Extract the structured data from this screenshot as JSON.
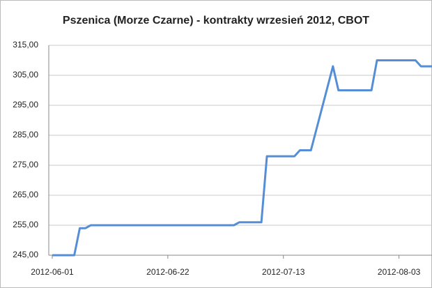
{
  "chart_data": {
    "type": "line",
    "title": "Pszenica (Morze Czarne) - kontrakty wrzesień 2012, CBOT",
    "x": [
      "2012-06-01",
      "2012-06-05",
      "2012-06-06",
      "2012-06-07",
      "2012-06-08",
      "2012-07-04",
      "2012-07-05",
      "2012-07-09",
      "2012-07-10",
      "2012-07-15",
      "2012-07-16",
      "2012-07-18",
      "2012-07-22",
      "2012-07-23",
      "2012-07-29",
      "2012-07-30",
      "2012-08-06",
      "2012-08-07",
      "2012-08-09"
    ],
    "values": [
      245,
      245,
      254,
      254,
      255,
      255,
      256,
      256,
      278,
      278,
      280,
      280,
      308,
      300,
      300,
      310,
      310,
      308,
      308
    ],
    "color": "#558ed5",
    "xlim": [
      "2012-06-01",
      "2012-08-09"
    ],
    "xticks": [
      "2012-06-01",
      "2012-06-22",
      "2012-07-13",
      "2012-08-03"
    ],
    "ylim": [
      245,
      315
    ],
    "yticks": [
      {
        "value": 245,
        "label": "245,00"
      },
      {
        "value": 255,
        "label": "255,00"
      },
      {
        "value": 265,
        "label": "265,00"
      },
      {
        "value": 275,
        "label": "275,00"
      },
      {
        "value": 285,
        "label": "285,00"
      },
      {
        "value": 295,
        "label": "295,00"
      },
      {
        "value": 305,
        "label": "305,00"
      },
      {
        "value": 315,
        "label": "315,00"
      }
    ],
    "grid": true
  }
}
